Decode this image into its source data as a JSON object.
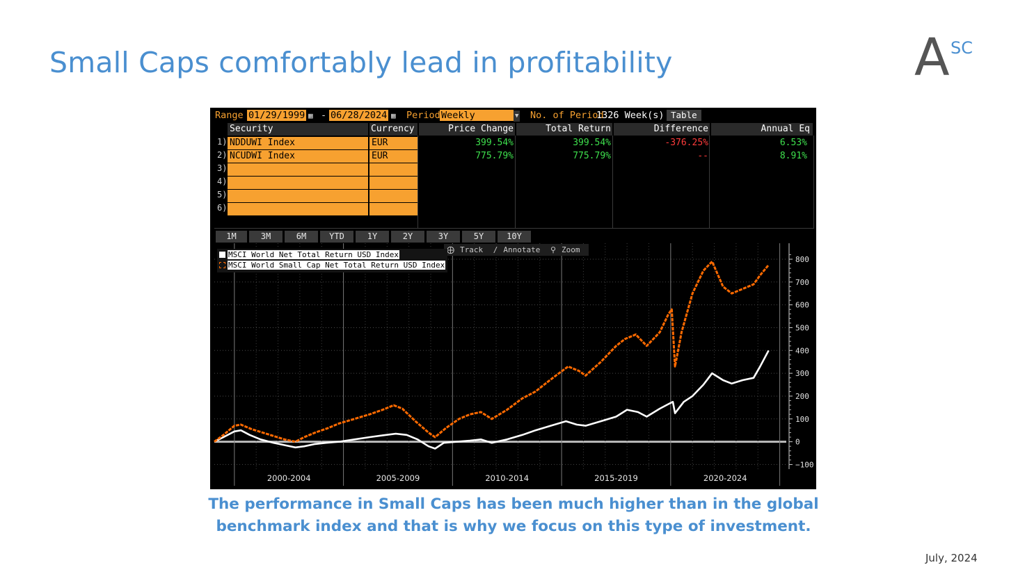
{
  "slide": {
    "title": "Small Caps comfortably lead in profitability",
    "logo_main": "A",
    "logo_sup": "SC",
    "caption": "The performance in Small Caps has been much higher than in the global benchmark index and that is why we focus on this type of investment.",
    "date": "July, 2024"
  },
  "terminal": {
    "range_label": "Range",
    "start_date": "01/29/1999",
    "dash": "-",
    "end_date": "06/28/2024",
    "period_label": "Period",
    "period_value": "Weekly",
    "num_periods_label": "No. of Period",
    "num_periods_value": "1326 Week(s)",
    "table_button": "Table",
    "columns": {
      "security": "Security",
      "currency": "Currency",
      "price_change": "Price Change",
      "total_return": "Total Return",
      "difference": "Difference",
      "annual_eq": "Annual Eq"
    },
    "rows": [
      {
        "num": "1)",
        "security": "NDDUWI Index",
        "currency": "EUR",
        "price_change": "399.54%",
        "total_return": "399.54%",
        "difference": "-376.25%",
        "annual_eq": "6.53%"
      },
      {
        "num": "2)",
        "security": "NCUDWI Index",
        "currency": "EUR",
        "price_change": "775.79%",
        "total_return": "775.79%",
        "difference": "--",
        "annual_eq": "8.91%"
      },
      {
        "num": "3)",
        "security": "",
        "currency": "",
        "price_change": "",
        "total_return": "",
        "difference": "",
        "annual_eq": ""
      },
      {
        "num": "4)",
        "security": "",
        "currency": "",
        "price_change": "",
        "total_return": "",
        "difference": "",
        "annual_eq": ""
      },
      {
        "num": "5)",
        "security": "",
        "currency": "",
        "price_change": "",
        "total_return": "",
        "difference": "",
        "annual_eq": ""
      },
      {
        "num": "6)",
        "security": "",
        "currency": "",
        "price_change": "",
        "total_return": "",
        "difference": "",
        "annual_eq": ""
      }
    ],
    "range_buttons": [
      "1M",
      "3M",
      "6M",
      "YTD",
      "1Y",
      "2Y",
      "3Y",
      "5Y",
      "10Y"
    ],
    "tools": {
      "track": "Track",
      "annotate": "Annotate",
      "zoom": "Zoom"
    },
    "colors": {
      "accent": "#f7a130",
      "positive": "#3ee04d",
      "negative": "#ff3b3b",
      "small_cap_line": "#ff6a00",
      "world_line": "#ffffff"
    }
  },
  "chart_data": {
    "type": "line",
    "title": "",
    "xlabel": "",
    "ylabel": "",
    "x_tick_labels": [
      "2000-2004",
      "2005-2009",
      "2010-2014",
      "2015-2019",
      "2020-2024"
    ],
    "y_ticks": [
      -100,
      0,
      100,
      200,
      300,
      400,
      500,
      600,
      700,
      800
    ],
    "ylim": [
      -120,
      870
    ],
    "xlim": [
      1999.08,
      2025.3
    ],
    "grid": true,
    "legend_position": "top-left",
    "series": [
      {
        "name": "MSCI World Net Total Return USD Index",
        "color": "#ffffff",
        "x": [
          1999.08,
          1999.5,
          2000.0,
          2000.3,
          2000.7,
          2001.2,
          2001.8,
          2002.3,
          2002.8,
          2003.2,
          2003.7,
          2004.2,
          2004.8,
          2005.5,
          2006.2,
          2006.8,
          2007.4,
          2007.9,
          2008.4,
          2008.9,
          2009.2,
          2009.6,
          2010.2,
          2010.8,
          2011.3,
          2011.8,
          2012.5,
          2013.2,
          2013.8,
          2014.5,
          2015.2,
          2015.7,
          2016.1,
          2016.8,
          2017.5,
          2018.0,
          2018.5,
          2018.9,
          2019.5,
          2019.9,
          2020.1,
          2020.2,
          2020.6,
          2021.0,
          2021.5,
          2021.9,
          2022.4,
          2022.8,
          2023.3,
          2023.8,
          2024.1,
          2024.49
        ],
        "values": [
          0,
          20,
          45,
          50,
          30,
          10,
          -5,
          -15,
          -25,
          -20,
          -10,
          -5,
          0,
          10,
          20,
          28,
          35,
          30,
          10,
          -20,
          -30,
          -5,
          0,
          5,
          10,
          -5,
          10,
          30,
          50,
          70,
          90,
          75,
          70,
          90,
          110,
          140,
          130,
          110,
          145,
          165,
          175,
          125,
          175,
          200,
          250,
          300,
          270,
          255,
          270,
          280,
          330,
          400
        ]
      },
      {
        "name": "MSCI World Small Cap Net Total Return USD Index",
        "color": "#ff6a00",
        "x": [
          1999.08,
          1999.5,
          2000.0,
          2000.3,
          2000.8,
          2001.3,
          2001.8,
          2002.3,
          2002.8,
          2003.2,
          2003.7,
          2004.3,
          2004.8,
          2005.5,
          2006.2,
          2006.8,
          2007.3,
          2007.7,
          2008.3,
          2008.9,
          2009.2,
          2009.7,
          2010.3,
          2010.8,
          2011.3,
          2011.8,
          2012.5,
          2013.2,
          2013.8,
          2014.2,
          2014.6,
          2015.3,
          2015.8,
          2016.1,
          2016.8,
          2017.5,
          2017.9,
          2018.4,
          2018.9,
          2019.5,
          2019.9,
          2020.05,
          2020.2,
          2020.5,
          2021.0,
          2021.5,
          2021.9,
          2022.4,
          2022.8,
          2023.3,
          2023.8,
          2024.1,
          2024.49
        ],
        "values": [
          0,
          30,
          70,
          75,
          55,
          40,
          25,
          10,
          0,
          20,
          40,
          60,
          80,
          100,
          120,
          140,
          160,
          145,
          90,
          40,
          20,
          60,
          100,
          120,
          130,
          100,
          140,
          190,
          220,
          250,
          280,
          330,
          310,
          290,
          350,
          420,
          450,
          470,
          420,
          480,
          560,
          580,
          330,
          480,
          650,
          750,
          790,
          680,
          650,
          670,
          690,
          730,
          775
        ]
      }
    ]
  }
}
